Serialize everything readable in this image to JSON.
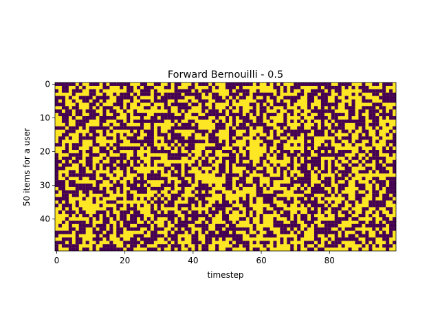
{
  "chart_data": {
    "type": "heatmap",
    "title": "Forward Bernouilli - 0.5",
    "xlabel": "timestep",
    "ylabel": "50 items for a user",
    "n_cols": 100,
    "n_rows": 50,
    "x_ticks": [
      0,
      20,
      40,
      60,
      80
    ],
    "y_ticks": [
      0,
      10,
      20,
      30,
      40
    ],
    "value_range": [
      0,
      1
    ],
    "colors": {
      "0": "#440154",
      "1": "#fde725"
    },
    "probability": 0.5,
    "values_note": "Binary matrix of independent Bernoulli draws; individual cell values rendered procedurally."
  }
}
